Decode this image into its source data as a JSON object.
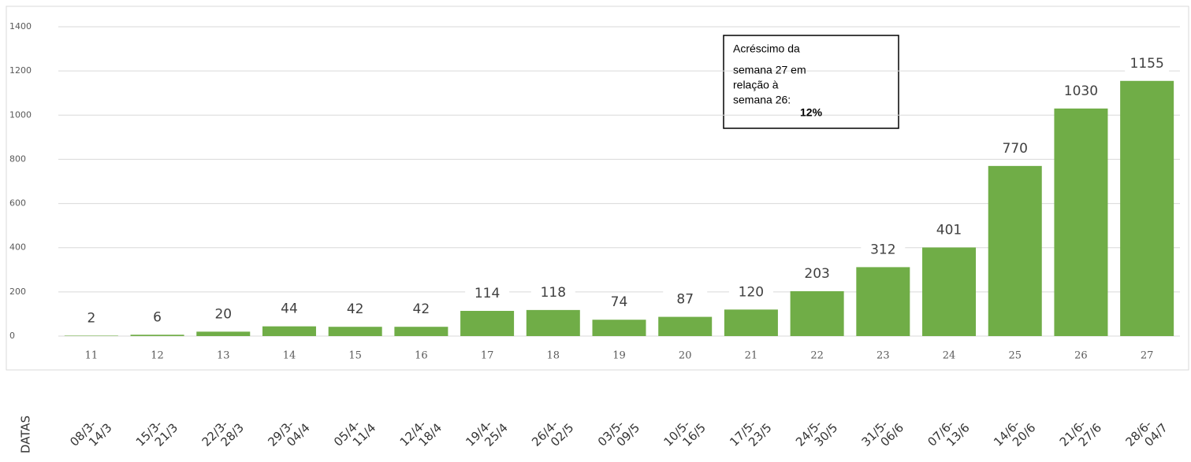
{
  "chart_data": {
    "type": "bar",
    "categories": [
      "11",
      "12",
      "13",
      "14",
      "15",
      "16",
      "17",
      "18",
      "19",
      "20",
      "21",
      "22",
      "23",
      "24",
      "25",
      "26",
      "27"
    ],
    "values": [
      2,
      6,
      20,
      44,
      42,
      42,
      114,
      118,
      74,
      87,
      120,
      203,
      312,
      401,
      770,
      1030,
      1155
    ],
    "color": "#70ad47",
    "ylim": [
      0,
      1400
    ],
    "yticks": [
      0,
      200,
      400,
      600,
      800,
      1000,
      1200,
      1400
    ],
    "grid": true,
    "annotation": {
      "lines": [
        "Acréscimo da",
        "semana 27 em",
        "relação à",
        "semana 26:"
      ],
      "highlight": "12%"
    },
    "dates_label": "DATAS",
    "dates": [
      [
        "08/3-",
        "14/3"
      ],
      [
        "15/3-",
        "21/3"
      ],
      [
        "22/3-",
        "28/3"
      ],
      [
        "29/3-",
        "04/4"
      ],
      [
        "05/4-",
        "11/4"
      ],
      [
        "12/4-",
        "18/4"
      ],
      [
        "19/4-",
        "25/4"
      ],
      [
        "26/4-",
        "02/5"
      ],
      [
        "03/5-",
        "09/5"
      ],
      [
        "10/5-",
        "16/5"
      ],
      [
        "17/5-",
        "23/5"
      ],
      [
        "24/5-",
        "30/5"
      ],
      [
        "31/5-",
        "06/6"
      ],
      [
        "07/6-",
        "13/6"
      ],
      [
        "14/6-",
        "20/6"
      ],
      [
        "21/6-",
        "27/6"
      ],
      [
        "28/6-",
        "04/7"
      ]
    ]
  }
}
